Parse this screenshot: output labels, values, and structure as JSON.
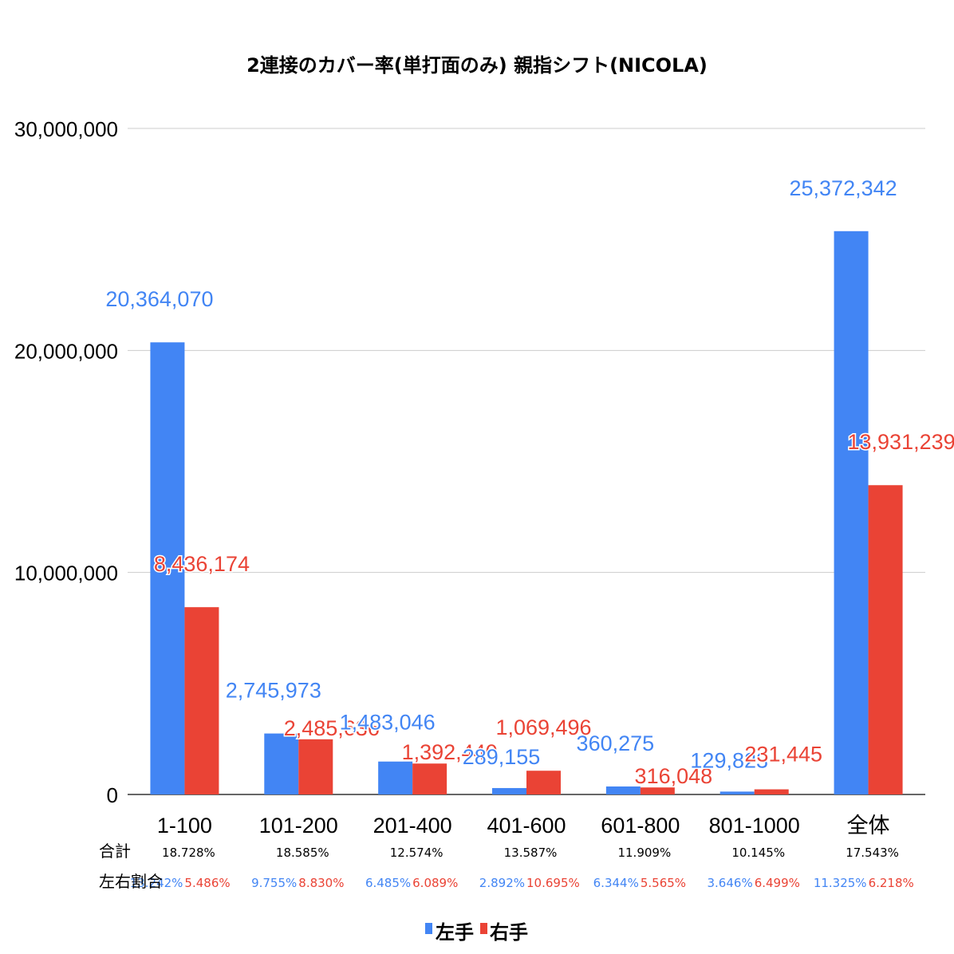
{
  "chart_data": {
    "type": "bar",
    "title": "2連接のカバー率(単打面のみ) 親指シフト(NICOLA)",
    "categories": [
      "1-100",
      "101-200",
      "201-400",
      "401-600",
      "601-800",
      "801-1000",
      "全体"
    ],
    "series": [
      {
        "name": "左手",
        "color": "#4285f4",
        "values": [
          20364070,
          2745973,
          1483046,
          289155,
          360275,
          129823,
          25372342
        ],
        "labels": [
          "20,364,070",
          "2,745,973",
          "1,483,046",
          "289,155",
          "360,275",
          "129,823",
          "25,372,342"
        ]
      },
      {
        "name": "右手",
        "color": "#ea4335",
        "values": [
          8436174,
          2485636,
          1392440,
          1069496,
          316048,
          231445,
          13931239
        ],
        "labels": [
          "8,436,174",
          "2,485,636",
          "1,392,440",
          "1,069,496",
          "316,048",
          "231,445",
          "13,931,239"
        ]
      }
    ],
    "ylim": [
      0,
      30000000
    ],
    "yticks": [
      0,
      10000000,
      20000000,
      30000000
    ],
    "ytick_labels": [
      "0",
      "10,000,000",
      "20,000,000",
      "30,000,000"
    ],
    "grid": true,
    "legend_position": "bottom",
    "annotations": {
      "total_label": "合計",
      "split_label": "左右割合",
      "totals": [
        "18.728%",
        "18.585%",
        "12.574%",
        "13.587%",
        "11.909%",
        "10.145%",
        "17.543%"
      ],
      "left_pct": [
        "13.242%",
        "9.755%",
        "6.485%",
        "2.892%",
        "6.344%",
        "3.646%",
        "11.325%"
      ],
      "right_pct": [
        "5.486%",
        "8.830%",
        "6.089%",
        "10.695%",
        "5.565%",
        "6.499%",
        "6.218%"
      ]
    }
  }
}
